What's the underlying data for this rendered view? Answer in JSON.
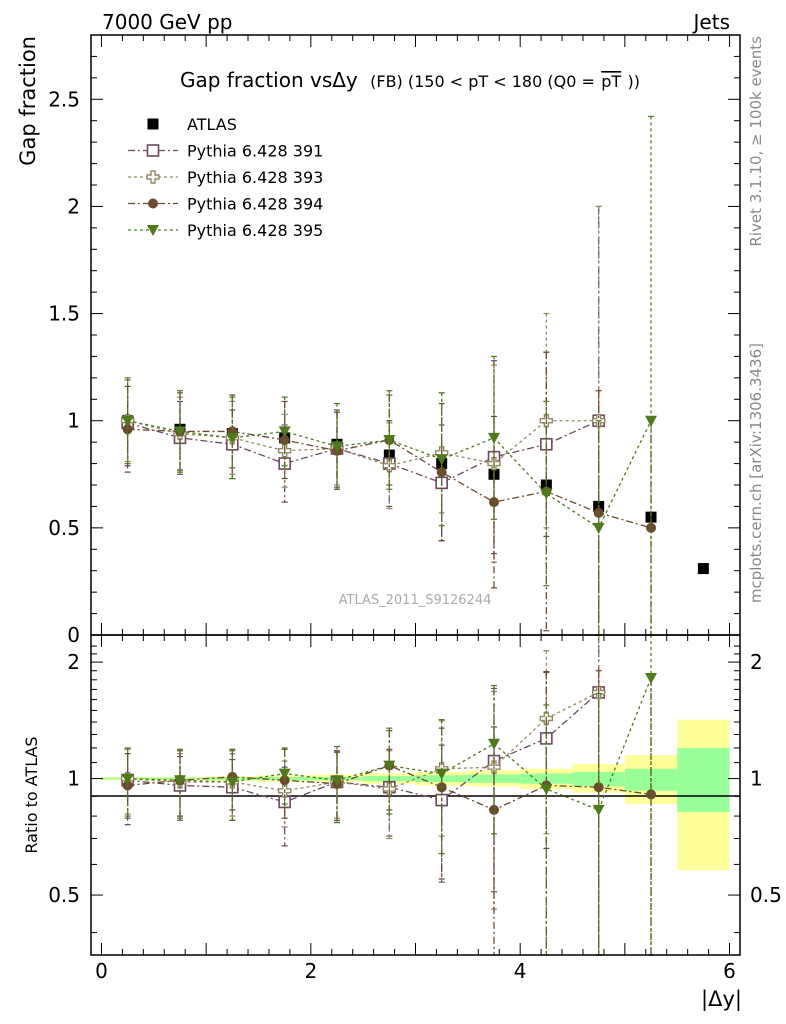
{
  "header": {
    "energy_label": "7000 GeV pp",
    "process_label": "Jets",
    "rivet_label": "Rivet 3.1.10, ≥ 100k events",
    "mcplots_label": "mcplots.cern.ch [arXiv:1306.3436]",
    "analysis_label": "ATLAS_2011_S9126244"
  },
  "colors": {
    "atlas": "#000000",
    "p391": "#6b4a5e",
    "p393": "#948762",
    "p394": "#6b4a2e",
    "p395": "#4e7a1d",
    "band_inner": "#99ff99",
    "band_outer": "#ffff99",
    "label_gray": "#888888"
  },
  "chart_data": [
    {
      "type": "scatter",
      "title": "Gap fraction vsΔy (FB) (150 < pT < 180 (Q0 =pT))",
      "title_main": "Gap fraction vsΔy",
      "title_sub": "(FB) (150 < pT < 180 (Q0 =",
      "title_overline": "pT",
      "title_end": "))",
      "ylabel": "Gap fraction",
      "xlim": [
        -0.1,
        6.1
      ],
      "ylim": [
        0,
        2.8
      ],
      "yticks": [
        0,
        0.5,
        1,
        1.5,
        2,
        2.5
      ],
      "ytick_labels": [
        "0",
        "0.5",
        "1",
        "1.5",
        "2",
        "2.5"
      ],
      "legend_position": "top-left",
      "x": [
        0.25,
        0.75,
        1.25,
        1.75,
        2.25,
        2.75,
        3.25,
        3.75,
        4.25,
        4.75,
        5.25,
        5.75
      ],
      "series": [
        {
          "name": "ATLAS",
          "marker": "filled-square",
          "color_key": "atlas",
          "values": [
            1.0,
            0.96,
            0.94,
            0.92,
            0.89,
            0.84,
            0.8,
            0.75,
            0.7,
            0.6,
            0.55,
            0.31
          ]
        },
        {
          "name": "Pythia 6.428 391",
          "marker": "open-square",
          "color_key": "p391",
          "values": [
            0.99,
            0.92,
            0.89,
            0.8,
            0.87,
            0.8,
            0.71,
            0.83,
            0.89,
            1.0,
            null,
            null
          ],
          "errors": [
            0.2,
            0.17,
            0.16,
            0.18,
            0.18,
            0.2,
            0.27,
            0.45,
            0.43,
            1.0,
            null,
            null
          ]
        },
        {
          "name": "Pythia 6.428 393",
          "marker": "open-cross",
          "color_key": "p393",
          "values": [
            1.0,
            0.94,
            0.92,
            0.86,
            0.87,
            0.79,
            0.85,
            0.8,
            1.0,
            1.0,
            null,
            null
          ],
          "errors": [
            0.19,
            0.17,
            0.17,
            0.17,
            0.17,
            0.2,
            0.28,
            0.46,
            0.5,
            1.0,
            null,
            null
          ]
        },
        {
          "name": "Pythia 6.428 394",
          "marker": "filled-circle",
          "color_key": "p394",
          "values": [
            0.96,
            0.95,
            0.95,
            0.91,
            0.86,
            0.91,
            0.76,
            0.62,
            0.67,
            0.57,
            0.5,
            null
          ],
          "errors": [
            0.2,
            0.18,
            0.17,
            0.18,
            0.18,
            0.21,
            0.32,
            0.4,
            0.65,
            0.57,
            0.5,
            null
          ]
        },
        {
          "name": "Pythia 6.428 395",
          "marker": "filled-triangle-down",
          "color_key": "p395",
          "values": [
            1.0,
            0.95,
            0.92,
            0.95,
            0.88,
            0.91,
            0.82,
            0.92,
            0.66,
            0.5,
            1.0,
            null
          ],
          "errors": [
            0.2,
            0.19,
            0.19,
            0.16,
            0.2,
            0.23,
            0.31,
            0.38,
            0.43,
            0.5,
            1.42,
            null
          ]
        }
      ]
    },
    {
      "type": "scatter",
      "ylabel": "Ratio to ATLAS",
      "xlabel": "|Δy|",
      "xlim": [
        -0.1,
        6.1
      ],
      "ylim": [
        0.35,
        2.35
      ],
      "yticks": [
        0.5,
        1,
        2
      ],
      "ytick_labels": [
        "0.5",
        "1",
        "2"
      ],
      "xticks": [
        0,
        2,
        4,
        6
      ],
      "xtick_labels": [
        "0",
        "2",
        "4",
        "6"
      ],
      "reference_line": 1,
      "x": [
        0.25,
        0.75,
        1.25,
        1.75,
        2.25,
        2.75,
        3.25,
        3.75,
        4.25,
        4.75,
        5.25
      ],
      "bands": [
        {
          "x0": 0.0,
          "x1": 0.5,
          "inner": [
            0.995,
            1.005
          ],
          "outer": [
            0.99,
            1.01
          ]
        },
        {
          "x0": 0.5,
          "x1": 1.0,
          "inner": [
            0.995,
            1.005
          ],
          "outer": [
            0.99,
            1.01
          ]
        },
        {
          "x0": 1.0,
          "x1": 1.5,
          "inner": [
            0.992,
            1.008
          ],
          "outer": [
            0.985,
            1.015
          ]
        },
        {
          "x0": 1.5,
          "x1": 2.0,
          "inner": [
            0.99,
            1.01
          ],
          "outer": [
            0.98,
            1.02
          ]
        },
        {
          "x0": 2.0,
          "x1": 2.5,
          "inner": [
            0.99,
            1.01
          ],
          "outer": [
            0.98,
            1.025
          ]
        },
        {
          "x0": 2.5,
          "x1": 3.0,
          "inner": [
            0.985,
            1.015
          ],
          "outer": [
            0.97,
            1.03
          ]
        },
        {
          "x0": 3.0,
          "x1": 3.5,
          "inner": [
            0.98,
            1.02
          ],
          "outer": [
            0.96,
            1.04
          ]
        },
        {
          "x0": 3.5,
          "x1": 4.0,
          "inner": [
            0.975,
            1.025
          ],
          "outer": [
            0.955,
            1.05
          ]
        },
        {
          "x0": 4.0,
          "x1": 4.5,
          "inner": [
            0.97,
            1.03
          ],
          "outer": [
            0.94,
            1.06
          ]
        },
        {
          "x0": 4.5,
          "x1": 5.0,
          "inner": [
            0.955,
            1.04
          ],
          "outer": [
            0.92,
            1.09
          ]
        },
        {
          "x0": 5.0,
          "x1": 5.5,
          "inner": [
            0.93,
            1.06
          ],
          "outer": [
            0.86,
            1.15
          ]
        },
        {
          "x0": 5.5,
          "x1": 6.0,
          "inner": [
            0.82,
            1.2
          ],
          "outer": [
            0.58,
            1.42
          ]
        }
      ],
      "series": [
        {
          "name": "Pythia 6.428 391",
          "marker": "open-square",
          "color_key": "p391",
          "values": [
            0.99,
            0.96,
            0.95,
            0.87,
            0.98,
            0.95,
            0.88,
            1.11,
            1.27,
            1.67,
            null
          ],
          "errors": [
            0.2,
            0.18,
            0.17,
            0.2,
            0.2,
            0.24,
            0.34,
            0.6,
            0.61,
            1.67,
            null
          ]
        },
        {
          "name": "Pythia 6.428 393",
          "marker": "open-cross",
          "color_key": "p393",
          "values": [
            1.0,
            0.98,
            0.98,
            0.93,
            0.98,
            0.94,
            1.06,
            1.07,
            1.43,
            1.67,
            null
          ],
          "errors": [
            0.19,
            0.18,
            0.18,
            0.18,
            0.19,
            0.24,
            0.35,
            0.61,
            0.71,
            1.67,
            null
          ]
        },
        {
          "name": "Pythia 6.428 394",
          "marker": "filled-circle",
          "color_key": "p394",
          "values": [
            0.96,
            0.99,
            1.01,
            0.99,
            0.97,
            1.08,
            0.95,
            0.83,
            0.96,
            0.95,
            0.91
          ],
          "errors": [
            0.2,
            0.19,
            0.18,
            0.2,
            0.2,
            0.25,
            0.4,
            0.53,
            0.93,
            0.95,
            0.91
          ]
        },
        {
          "name": "Pythia 6.428 395",
          "marker": "filled-triangle-down",
          "color_key": "p395",
          "values": [
            1.0,
            0.99,
            0.98,
            1.03,
            0.99,
            1.08,
            1.03,
            1.23,
            0.94,
            0.83,
            1.82
          ],
          "errors": [
            0.2,
            0.2,
            0.2,
            0.17,
            0.22,
            0.27,
            0.39,
            0.51,
            0.61,
            0.83,
            2.58
          ]
        }
      ]
    }
  ]
}
